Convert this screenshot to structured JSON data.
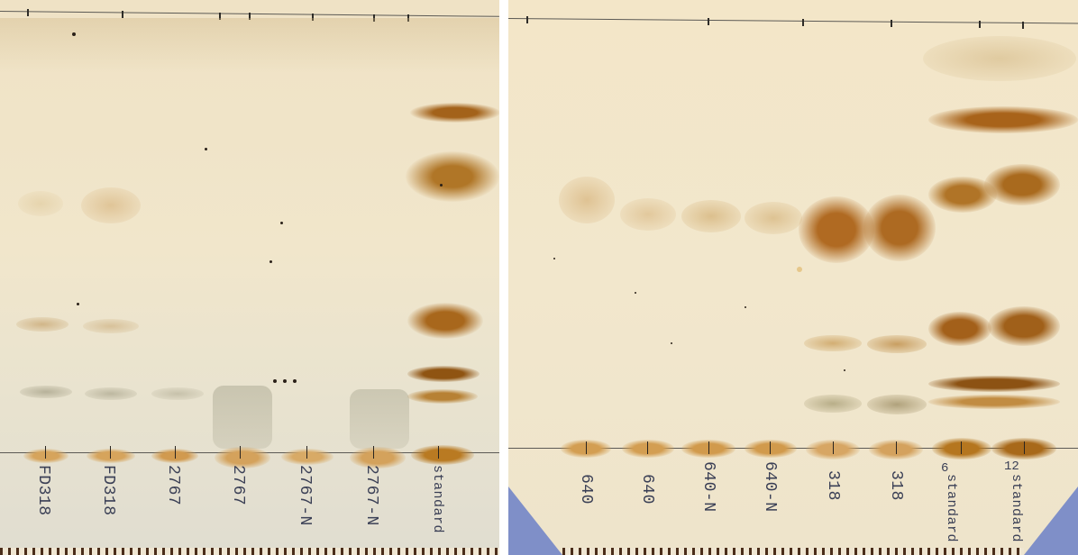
{
  "plates": {
    "left": {
      "lanes": [
        {
          "label": "FD318"
        },
        {
          "label": "FD318"
        },
        {
          "label": "2767"
        },
        {
          "label": "2767"
        },
        {
          "label": "2767-N"
        },
        {
          "label": "2767-N"
        },
        {
          "label": "standard"
        }
      ]
    },
    "right": {
      "lanes": [
        {
          "label": "640"
        },
        {
          "label": "640"
        },
        {
          "label": "640-N"
        },
        {
          "label": "640-N"
        },
        {
          "label": "318"
        },
        {
          "label": "318"
        },
        {
          "label": "standard",
          "number": "6"
        },
        {
          "label": "standard",
          "number": "12"
        }
      ]
    }
  },
  "colors": {
    "band_dark": "#9c5f17",
    "band_light": "#d9b47c",
    "grey_band": "#b9b39c",
    "ink": "#3a3f55"
  }
}
